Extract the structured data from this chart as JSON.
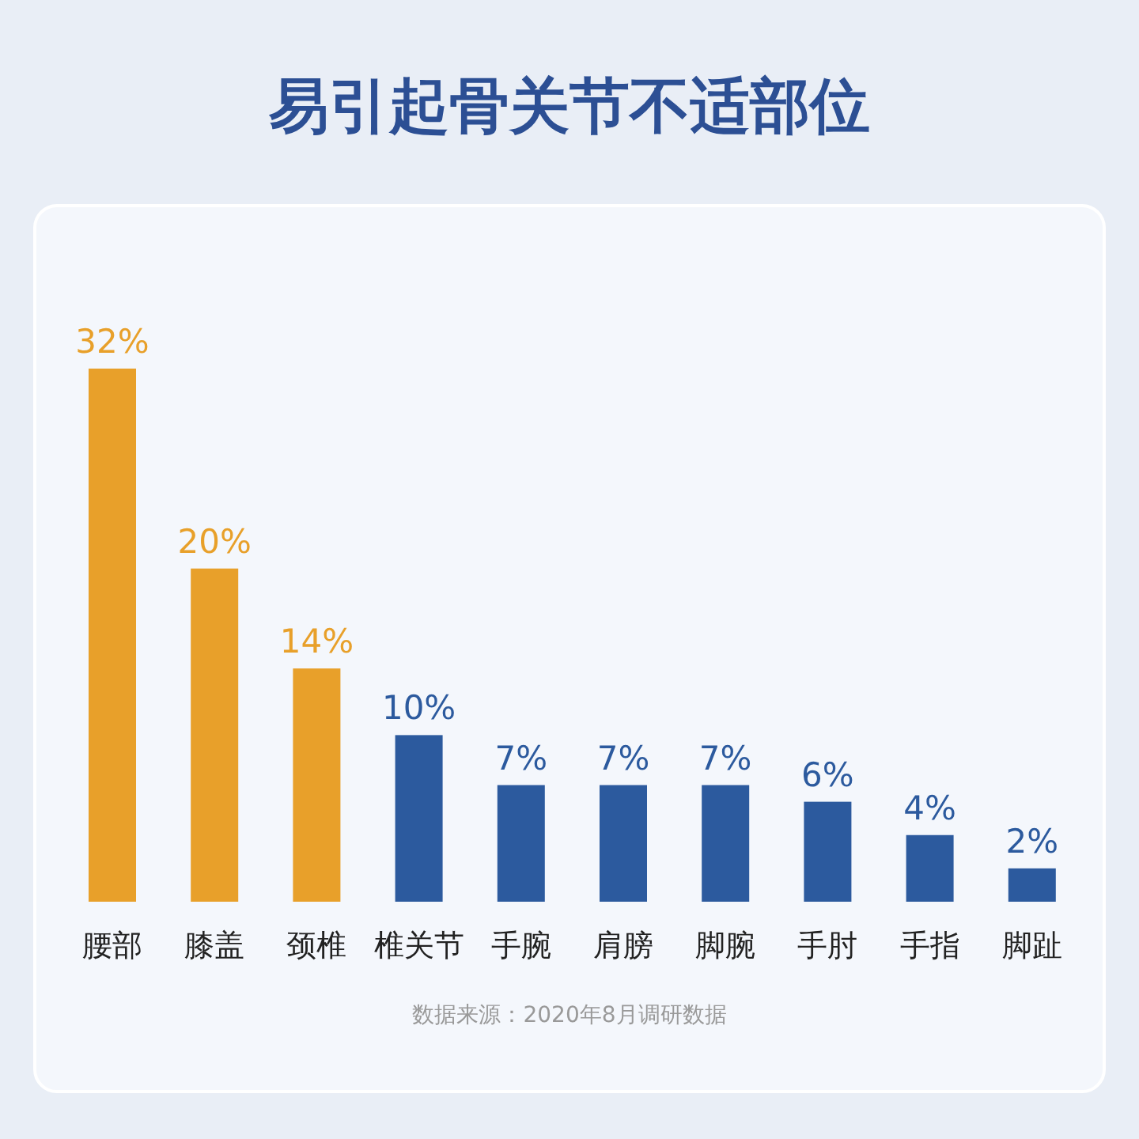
{
  "chart_data": {
    "type": "bar",
    "title": "易引起骨关节不适部位",
    "categories": [
      "腰部",
      "膝盖",
      "颈椎",
      "椎关节",
      "手腕",
      "肩膀",
      "脚腕",
      "手肘",
      "手指",
      "脚趾"
    ],
    "values": [
      32,
      20,
      14,
      10,
      7,
      7,
      7,
      6,
      4,
      2
    ],
    "colors": [
      "#e8a02a",
      "#e8a02a",
      "#e8a02a",
      "#2c5a9e",
      "#2c5a9e",
      "#2c5a9e",
      "#2c5a9e",
      "#2c5a9e",
      "#2c5a9e",
      "#2c5a9e"
    ],
    "value_labels": [
      "32%",
      "20%",
      "14%",
      "10%",
      "7%",
      "7%",
      "7%",
      "6%",
      "4%",
      "2%"
    ],
    "annotations": [
      "数据来源：2020年8月调研数据"
    ]
  }
}
